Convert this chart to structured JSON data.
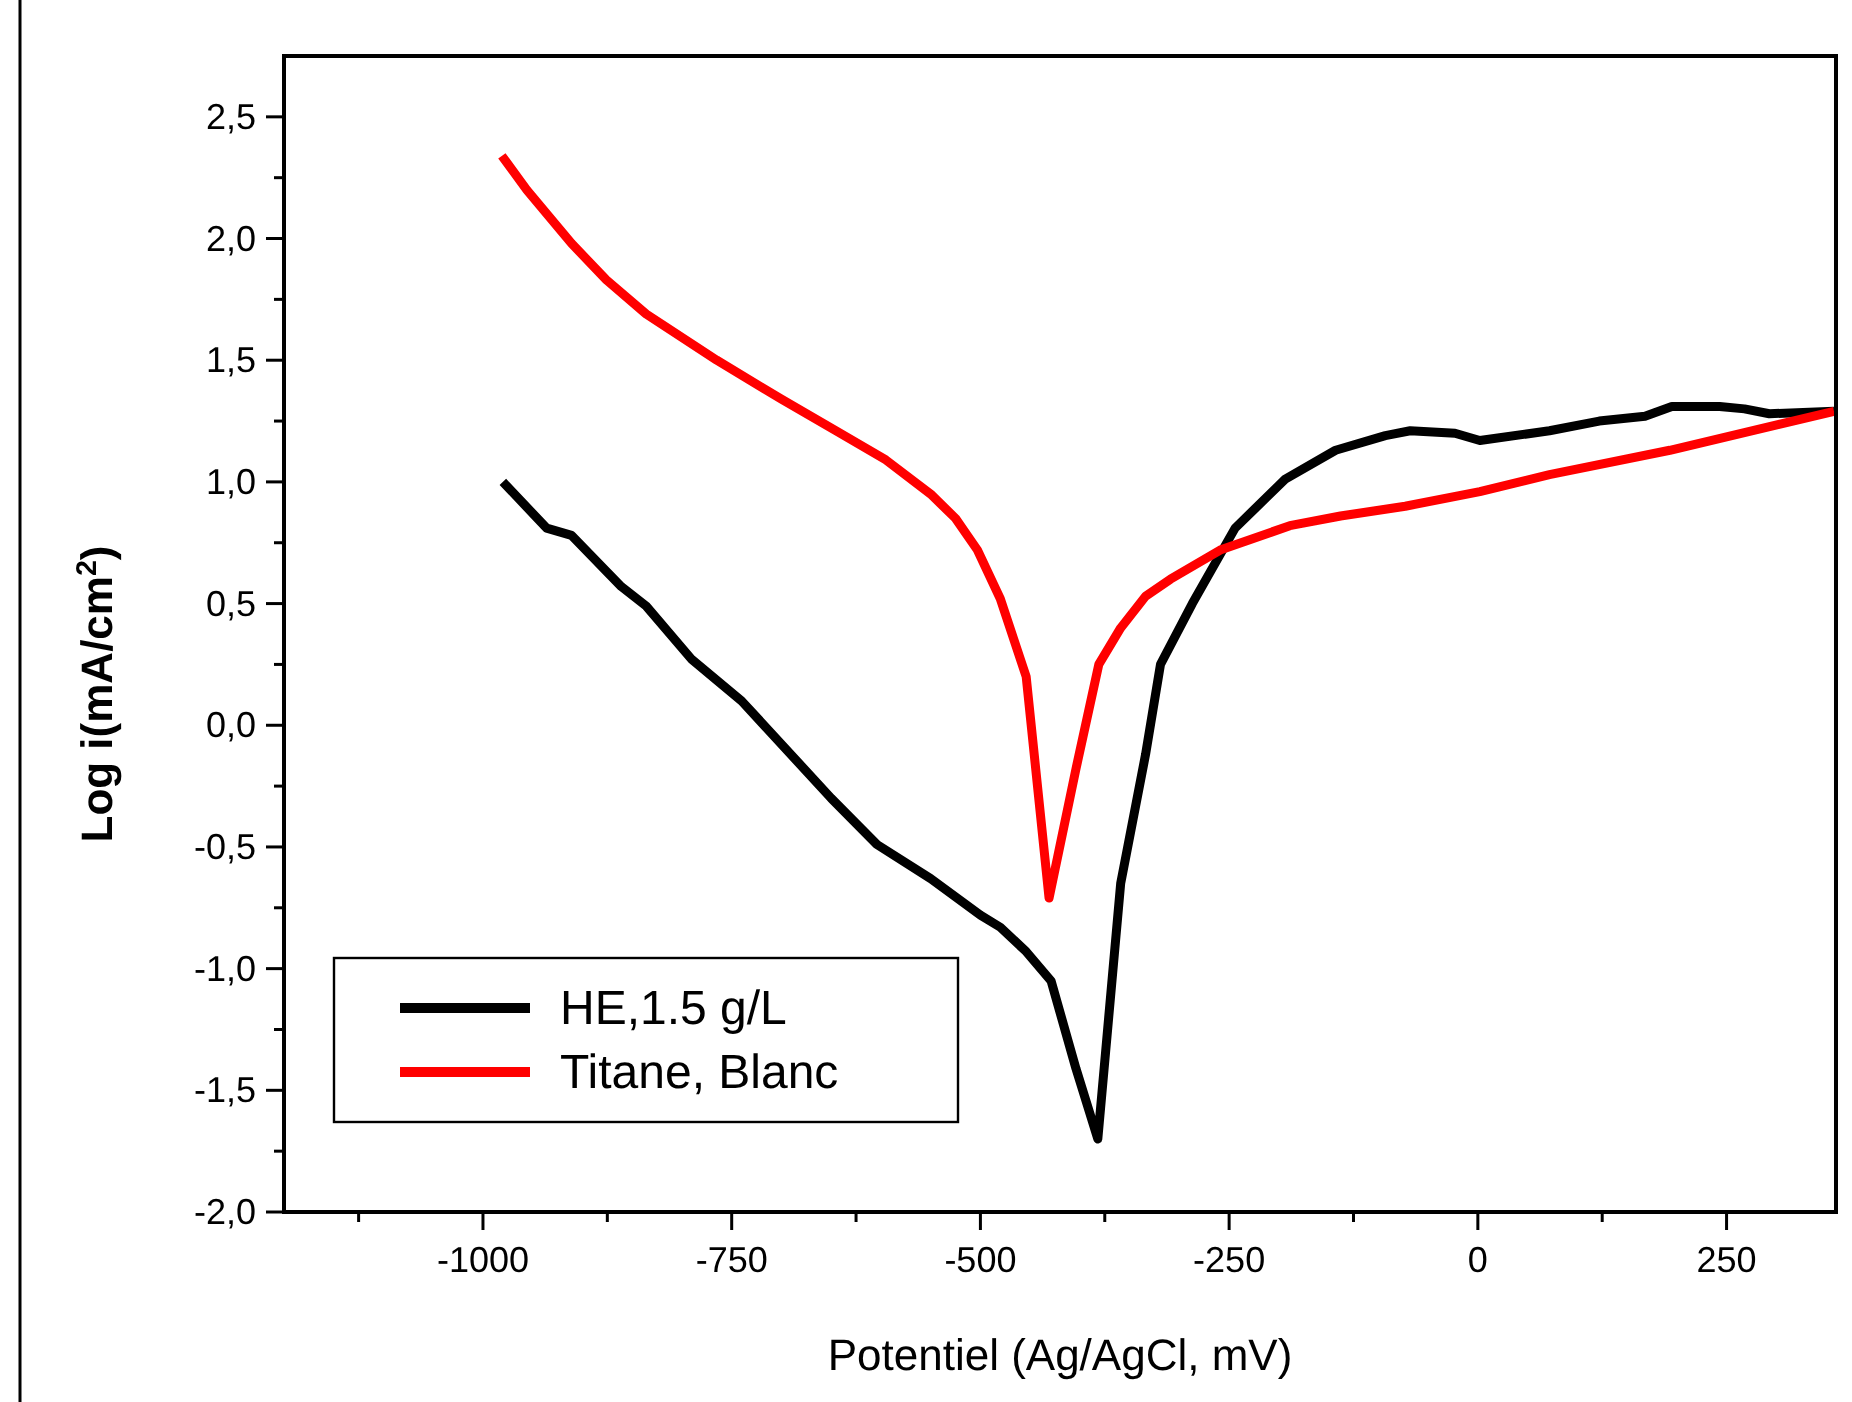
{
  "chart_data": {
    "type": "line",
    "xlabel": "Potentiel (Ag/AgCl, mV)",
    "ylabel": "Log i(mA/cm$^{2}$)",
    "xlim": [
      -1200,
      360
    ],
    "xticks": [
      {
        "value": -1125,
        "label": null
      },
      -1000,
      {
        "value": -875,
        "label": null
      },
      -750,
      {
        "value": -625,
        "label": null
      },
      -500,
      {
        "value": -375,
        "label": null
      },
      -250,
      {
        "value": -125,
        "label": null
      },
      0,
      {
        "value": 125,
        "label": null
      },
      250
    ],
    "ylim": [
      -2.0,
      2.75
    ],
    "yticks": [
      {
        "value": -2,
        "label": "-2,0"
      },
      {
        "value": -1.75,
        "label": null
      },
      {
        "value": -1.5,
        "label": "-1,5"
      },
      {
        "value": -1.25,
        "label": null
      },
      {
        "value": -1,
        "label": "-1,0"
      },
      {
        "value": -0.75,
        "label": null
      },
      {
        "value": -0.5,
        "label": "-0,5"
      },
      {
        "value": -0.25,
        "label": null
      },
      {
        "value": 0,
        "label": "0,0"
      },
      {
        "value": 0.25,
        "label": null
      },
      {
        "value": 0.5,
        "label": "0,5"
      },
      {
        "value": 0.75,
        "label": null
      },
      {
        "value": 1,
        "label": "1,0"
      },
      {
        "value": 1.25,
        "label": null
      },
      {
        "value": 1.5,
        "label": "1,5"
      },
      {
        "value": 1.75,
        "label": null
      },
      {
        "value": 2,
        "label": "2,0"
      },
      {
        "value": 2.25,
        "label": null
      },
      {
        "value": 2.5,
        "label": "2,5"
      }
    ],
    "grid": false,
    "legend": "bottom left",
    "marker": "none",
    "line_style": "solid",
    "series": [
      {
        "name": "HE,1.5 g/L",
        "color": "#000000",
        "x": [
          -980,
          -936,
          -911,
          -861,
          -836,
          -790,
          -740,
          -650,
          -604,
          -550,
          -500,
          -480,
          -454,
          -429,
          -404,
          -382,
          -359,
          -334,
          -319,
          -287,
          -244,
          -194,
          -143,
          -93,
          -68,
          -23,
          2,
          72,
          122,
          168,
          195,
          243,
          268,
          293,
          358
        ],
        "values": [
          1.0,
          0.81,
          0.78,
          0.57,
          0.49,
          0.27,
          0.1,
          -0.3,
          -0.49,
          -0.63,
          -0.78,
          -0.83,
          -0.93,
          -1.05,
          -1.41,
          -1.7,
          -0.65,
          -0.12,
          0.25,
          0.5,
          0.81,
          1.01,
          1.13,
          1.19,
          1.21,
          1.2,
          1.17,
          1.21,
          1.25,
          1.27,
          1.31,
          1.31,
          1.3,
          1.28,
          1.29
        ]
      },
      {
        "name": "Titane, Blanc",
        "color": "#ff0000",
        "x": [
          -981,
          -956,
          -911,
          -876,
          -836,
          -765,
          -700,
          -645,
          -595,
          -550,
          -525,
          -503,
          -480,
          -454,
          -431,
          -404,
          -381,
          -359,
          -334,
          -309,
          -259,
          -189,
          -138,
          -73,
          2,
          72,
          193,
          358
        ],
        "values": [
          2.34,
          2.2,
          1.98,
          1.83,
          1.69,
          1.5,
          1.34,
          1.21,
          1.09,
          0.95,
          0.85,
          0.72,
          0.52,
          0.2,
          -0.71,
          -0.18,
          0.25,
          0.4,
          0.53,
          0.6,
          0.72,
          0.82,
          0.86,
          0.9,
          0.96,
          1.03,
          1.13,
          1.29
        ]
      }
    ]
  }
}
